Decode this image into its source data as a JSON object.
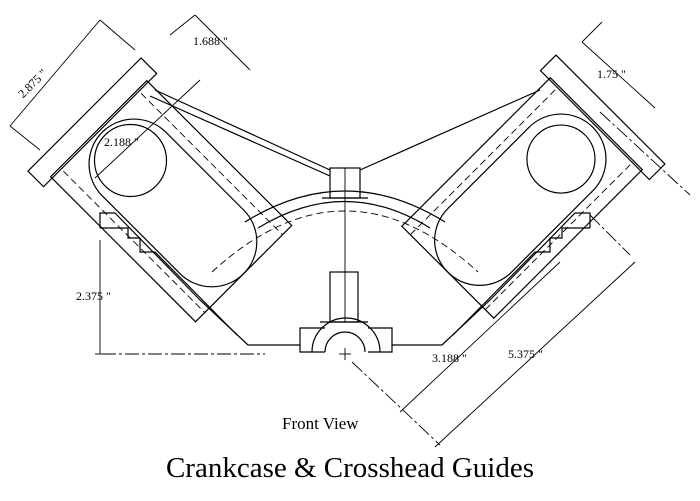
{
  "title": "Crankcase & Crosshead Guides",
  "view_label": "Front View",
  "dimensions": {
    "guide_width_left": "2.875 \"",
    "guide_offset_top": "1.688 \"",
    "bore_diameter": "2.188 \"",
    "guide_width_right": "1.75 \"",
    "crank_height": "2.375 \"",
    "inner_offset": "3.188 \"",
    "outer_offset": "5.375 \""
  }
}
